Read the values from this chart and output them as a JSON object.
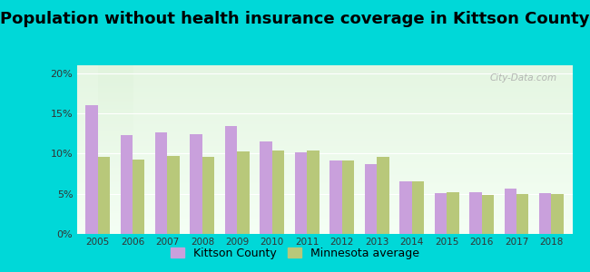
{
  "title": "Population without health insurance coverage in Kittson County",
  "years": [
    2005,
    2006,
    2007,
    2008,
    2009,
    2010,
    2011,
    2012,
    2013,
    2014,
    2015,
    2016,
    2017,
    2018
  ],
  "kittson": [
    16.0,
    12.3,
    12.6,
    12.4,
    13.4,
    11.5,
    10.2,
    9.2,
    8.7,
    6.6,
    5.1,
    5.2,
    5.7,
    5.1
  ],
  "minnesota": [
    9.6,
    9.3,
    9.7,
    9.6,
    10.3,
    10.4,
    10.4,
    9.1,
    9.6,
    6.6,
    5.2,
    4.8,
    5.0,
    5.0
  ],
  "kittson_color": "#c9a0dc",
  "minnesota_color": "#b8c87a",
  "background_outer": "#00d8d8",
  "background_inner_top": "#e8f5e0",
  "background_inner_bottom": "#f8fff8",
  "title_fontsize": 13,
  "ylim": [
    0,
    0.21
  ],
  "yticks": [
    0.0,
    0.05,
    0.1,
    0.15,
    0.2
  ],
  "ytick_labels": [
    "0%",
    "5%",
    "10%",
    "15%",
    "20%"
  ],
  "watermark": "City-Data.com",
  "legend_labels": [
    "Kittson County",
    "Minnesota average"
  ]
}
